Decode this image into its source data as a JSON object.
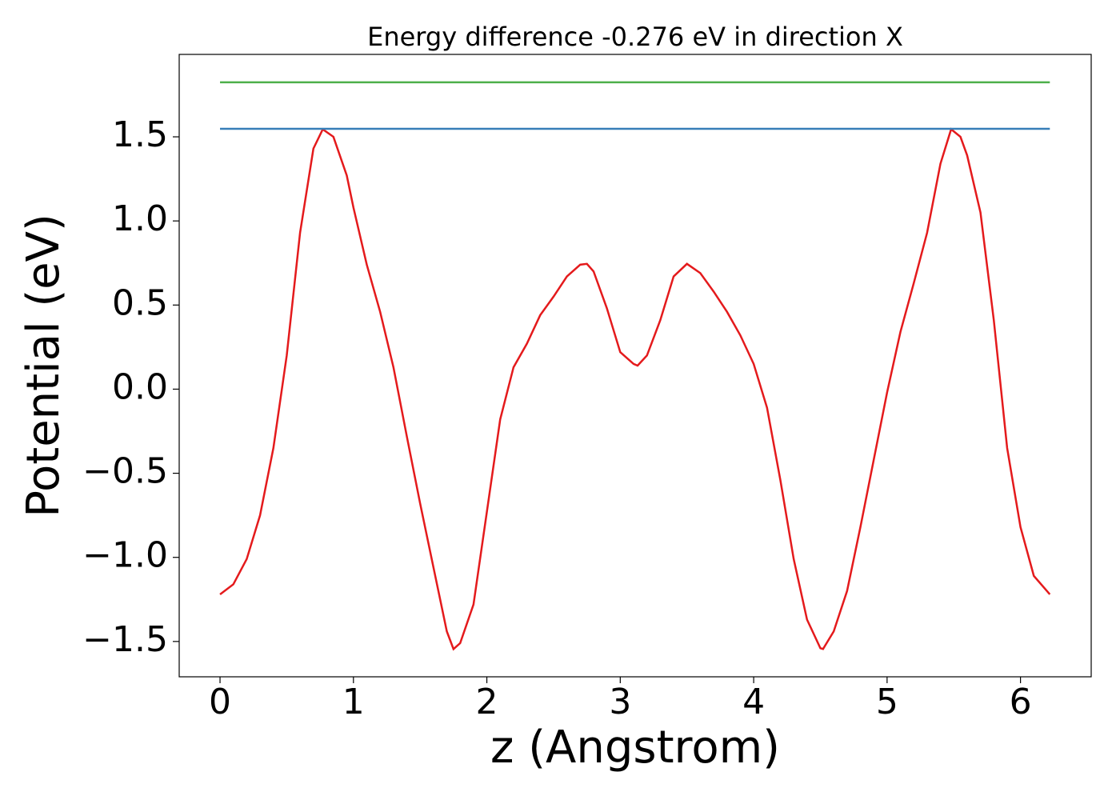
{
  "chart_data": {
    "type": "line",
    "title": "Energy difference -0.276 eV in direction X",
    "xlabel": "z (Angstrom)",
    "ylabel": "Potential (eV)",
    "xlim": [
      -0.306,
      6.53
    ],
    "ylim": [
      -1.71,
      1.99
    ],
    "xticks": [
      0,
      1,
      2,
      3,
      4,
      5,
      6
    ],
    "yticks": [
      {
        "value": -1.5,
        "label": "−1.5"
      },
      {
        "value": -1.0,
        "label": "−1.0"
      },
      {
        "value": -0.5,
        "label": "−0.5"
      },
      {
        "value": 0.0,
        "label": "0.0"
      },
      0.5,
      {
        "value": 1.0,
        "label": "1.0"
      },
      1.5
    ],
    "grid": false,
    "series": [
      {
        "color": "#e41a1c",
        "x": [
          0,
          0.1,
          0.2,
          0.3,
          0.4,
          0.5,
          0.6,
          0.7,
          0.77,
          0.85,
          0.95,
          1.0,
          1.1,
          1.2,
          1.3,
          1.4,
          1.5,
          1.6,
          1.7,
          1.75,
          1.8,
          1.9,
          2.0,
          2.1,
          2.2,
          2.3,
          2.4,
          2.5,
          2.6,
          2.7,
          2.75,
          2.8,
          2.9,
          3.0,
          3.1,
          3.13,
          3.2,
          3.3,
          3.4,
          3.5,
          3.6,
          3.7,
          3.8,
          3.9,
          4.0,
          4.1,
          4.2,
          4.3,
          4.4,
          4.5,
          4.52,
          4.6,
          4.7,
          4.8,
          4.9,
          5.0,
          5.1,
          5.2,
          5.3,
          5.4,
          5.48,
          5.55,
          5.6,
          5.7,
          5.8,
          5.9,
          6.0,
          6.1,
          6.22
        ],
        "values": [
          -1.22,
          -1.16,
          -1.01,
          -0.75,
          -0.35,
          0.2,
          0.93,
          1.43,
          1.545,
          1.5,
          1.27,
          1.08,
          0.74,
          0.46,
          0.13,
          -0.28,
          -0.68,
          -1.06,
          -1.44,
          -1.545,
          -1.51,
          -1.28,
          -0.73,
          -0.18,
          0.13,
          0.27,
          0.44,
          0.55,
          0.67,
          0.74,
          0.745,
          0.7,
          0.48,
          0.22,
          0.15,
          0.14,
          0.2,
          0.41,
          0.67,
          0.745,
          0.69,
          0.58,
          0.46,
          0.32,
          0.15,
          -0.11,
          -0.54,
          -1.01,
          -1.37,
          -1.54,
          -1.545,
          -1.44,
          -1.2,
          -0.82,
          -0.42,
          -0.02,
          0.34,
          0.63,
          0.93,
          1.34,
          1.545,
          1.5,
          1.39,
          1.05,
          0.41,
          -0.35,
          -0.82,
          -1.11,
          -1.22
        ]
      },
      {
        "color": "#377eb8",
        "x": [
          0,
          6.22
        ],
        "values": [
          1.548,
          1.548
        ]
      },
      {
        "color": "#4daf4a",
        "x": [
          0,
          6.22
        ],
        "values": [
          1.824,
          1.824
        ]
      }
    ]
  }
}
